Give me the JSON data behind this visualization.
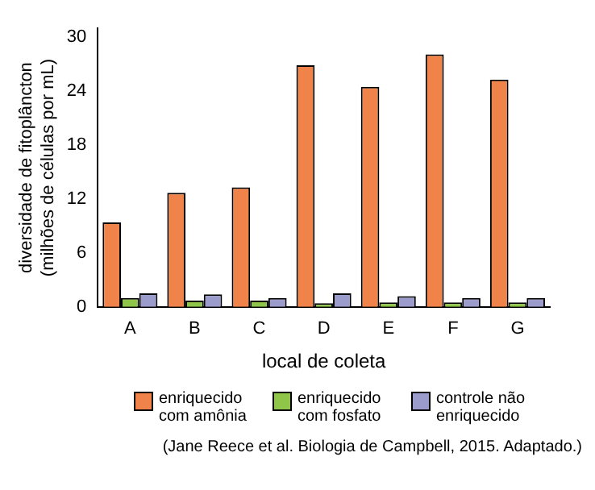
{
  "chart_data": {
    "type": "bar",
    "xlabel": "local de coleta",
    "ylabel": "diversidade de fitoplâncton (milhões de células por mL)",
    "categories": [
      "A",
      "B",
      "C",
      "D",
      "E",
      "F",
      "G"
    ],
    "series": [
      {
        "name": "enriquecido com amônia",
        "color": "#f0834a",
        "values": [
          9.4,
          12.7,
          13.3,
          26.9,
          24.5,
          28.1,
          25.3
        ]
      },
      {
        "name": "enriquecido com fosfato",
        "color": "#8fc64a",
        "values": [
          1.0,
          0.7,
          0.7,
          0.4,
          0.5,
          0.5,
          0.5
        ]
      },
      {
        "name": "controle não enriquecido",
        "color": "#9b9ccc",
        "values": [
          1.5,
          1.4,
          1.0,
          1.5,
          1.2,
          1.0,
          1.0
        ]
      }
    ],
    "ylim": [
      0,
      31
    ],
    "yticks": [
      0,
      6,
      12,
      18,
      24,
      30
    ],
    "grid": false,
    "legend": "bottom",
    "annotations": [
      "(Jane Reece et al. Biologia de Campbell, 2015. Adaptado.)"
    ]
  }
}
